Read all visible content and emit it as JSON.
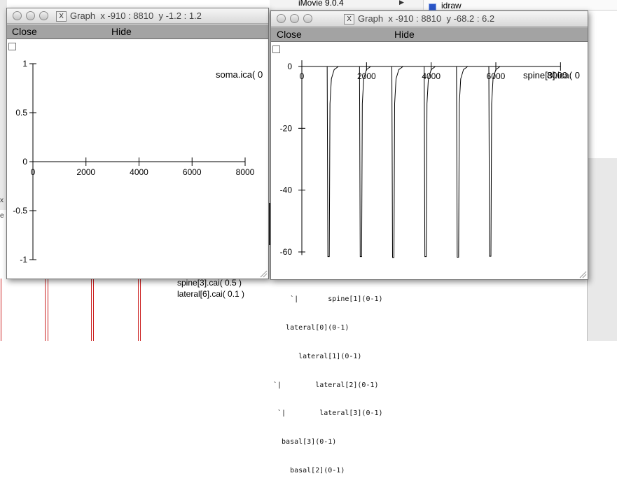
{
  "background": {
    "menu_item": "iMovie 9.0.4",
    "menu_arrow": "▶",
    "side_item": "idraw",
    "left_marks": [
      "x",
      "e"
    ],
    "legend": [
      {
        "label": "spine[3].cai( 0.5 )",
        "color": "#2255dd"
      },
      {
        "label": "lateral[6].cai( 0.1 )",
        "color": "#e8a020"
      }
    ],
    "tree_lines": [
      "    `|       spine[1](0-1)",
      "   lateral[0](0-1)",
      "      lateral[1](0-1)",
      "`|        lateral[2](0-1)",
      " `|        lateral[3](0-1)",
      "  basal[3](0-1)",
      "    basal[2](0-1)"
    ],
    "trace_color": "#cc2222"
  },
  "windows": [
    {
      "title": "Graph  x -910 : 8810  y -1.2 : 1.2",
      "close_label": "Close",
      "hide_label": "Hide",
      "graph_label": "soma.ica( 0",
      "chart": {
        "x_ticks": [
          0,
          2000,
          4000,
          6000,
          8000
        ],
        "x_tick_labels": [
          "0",
          "2000",
          "4000",
          "6000",
          "8000"
        ],
        "y_ticks": [
          1,
          0.5,
          0,
          -0.5,
          -1
        ],
        "y_tick_labels": [
          "1",
          "0.5",
          "0",
          "-0.5",
          "-1"
        ]
      }
    },
    {
      "title": "Graph  x -910 : 8810  y -68.2 : 6.2",
      "close_label": "Close",
      "hide_label": "Hide",
      "graph_label": "spine[3].ica( 0",
      "graph_label_overlap": "8000",
      "chart": {
        "x_ticks": [
          0,
          2000,
          4000,
          6000
        ],
        "x_tick_labels": [
          "0",
          "2000",
          "4000",
          "6000"
        ],
        "y_ticks": [
          0,
          -20,
          -40,
          -60
        ],
        "y_tick_labels": [
          "0",
          "-20",
          "-40",
          "-60"
        ]
      }
    }
  ],
  "chart_data": [
    {
      "type": "line",
      "title": "",
      "xlim": [
        -910,
        8810
      ],
      "ylim": [
        -1.2,
        1.2
      ],
      "grid": false,
      "series": [
        {
          "name": "soma.ica( 0",
          "x": [
            0,
            8000
          ],
          "y": [
            0,
            0
          ]
        }
      ]
    },
    {
      "type": "line",
      "title": "",
      "xlim": [
        -910,
        8810
      ],
      "ylim": [
        -68.2,
        6.2
      ],
      "grid": false,
      "spike_times": [
        1000,
        2000,
        3000,
        4000,
        5000,
        6000
      ],
      "spike_depths": [
        -61.5,
        -61.5,
        -61.8,
        -61.5,
        -61.7,
        -61.4
      ],
      "series": [
        {
          "name": "spine[3].ica( 0",
          "x": [
            0,
            8000
          ],
          "y": [
            0,
            0
          ]
        }
      ]
    }
  ]
}
